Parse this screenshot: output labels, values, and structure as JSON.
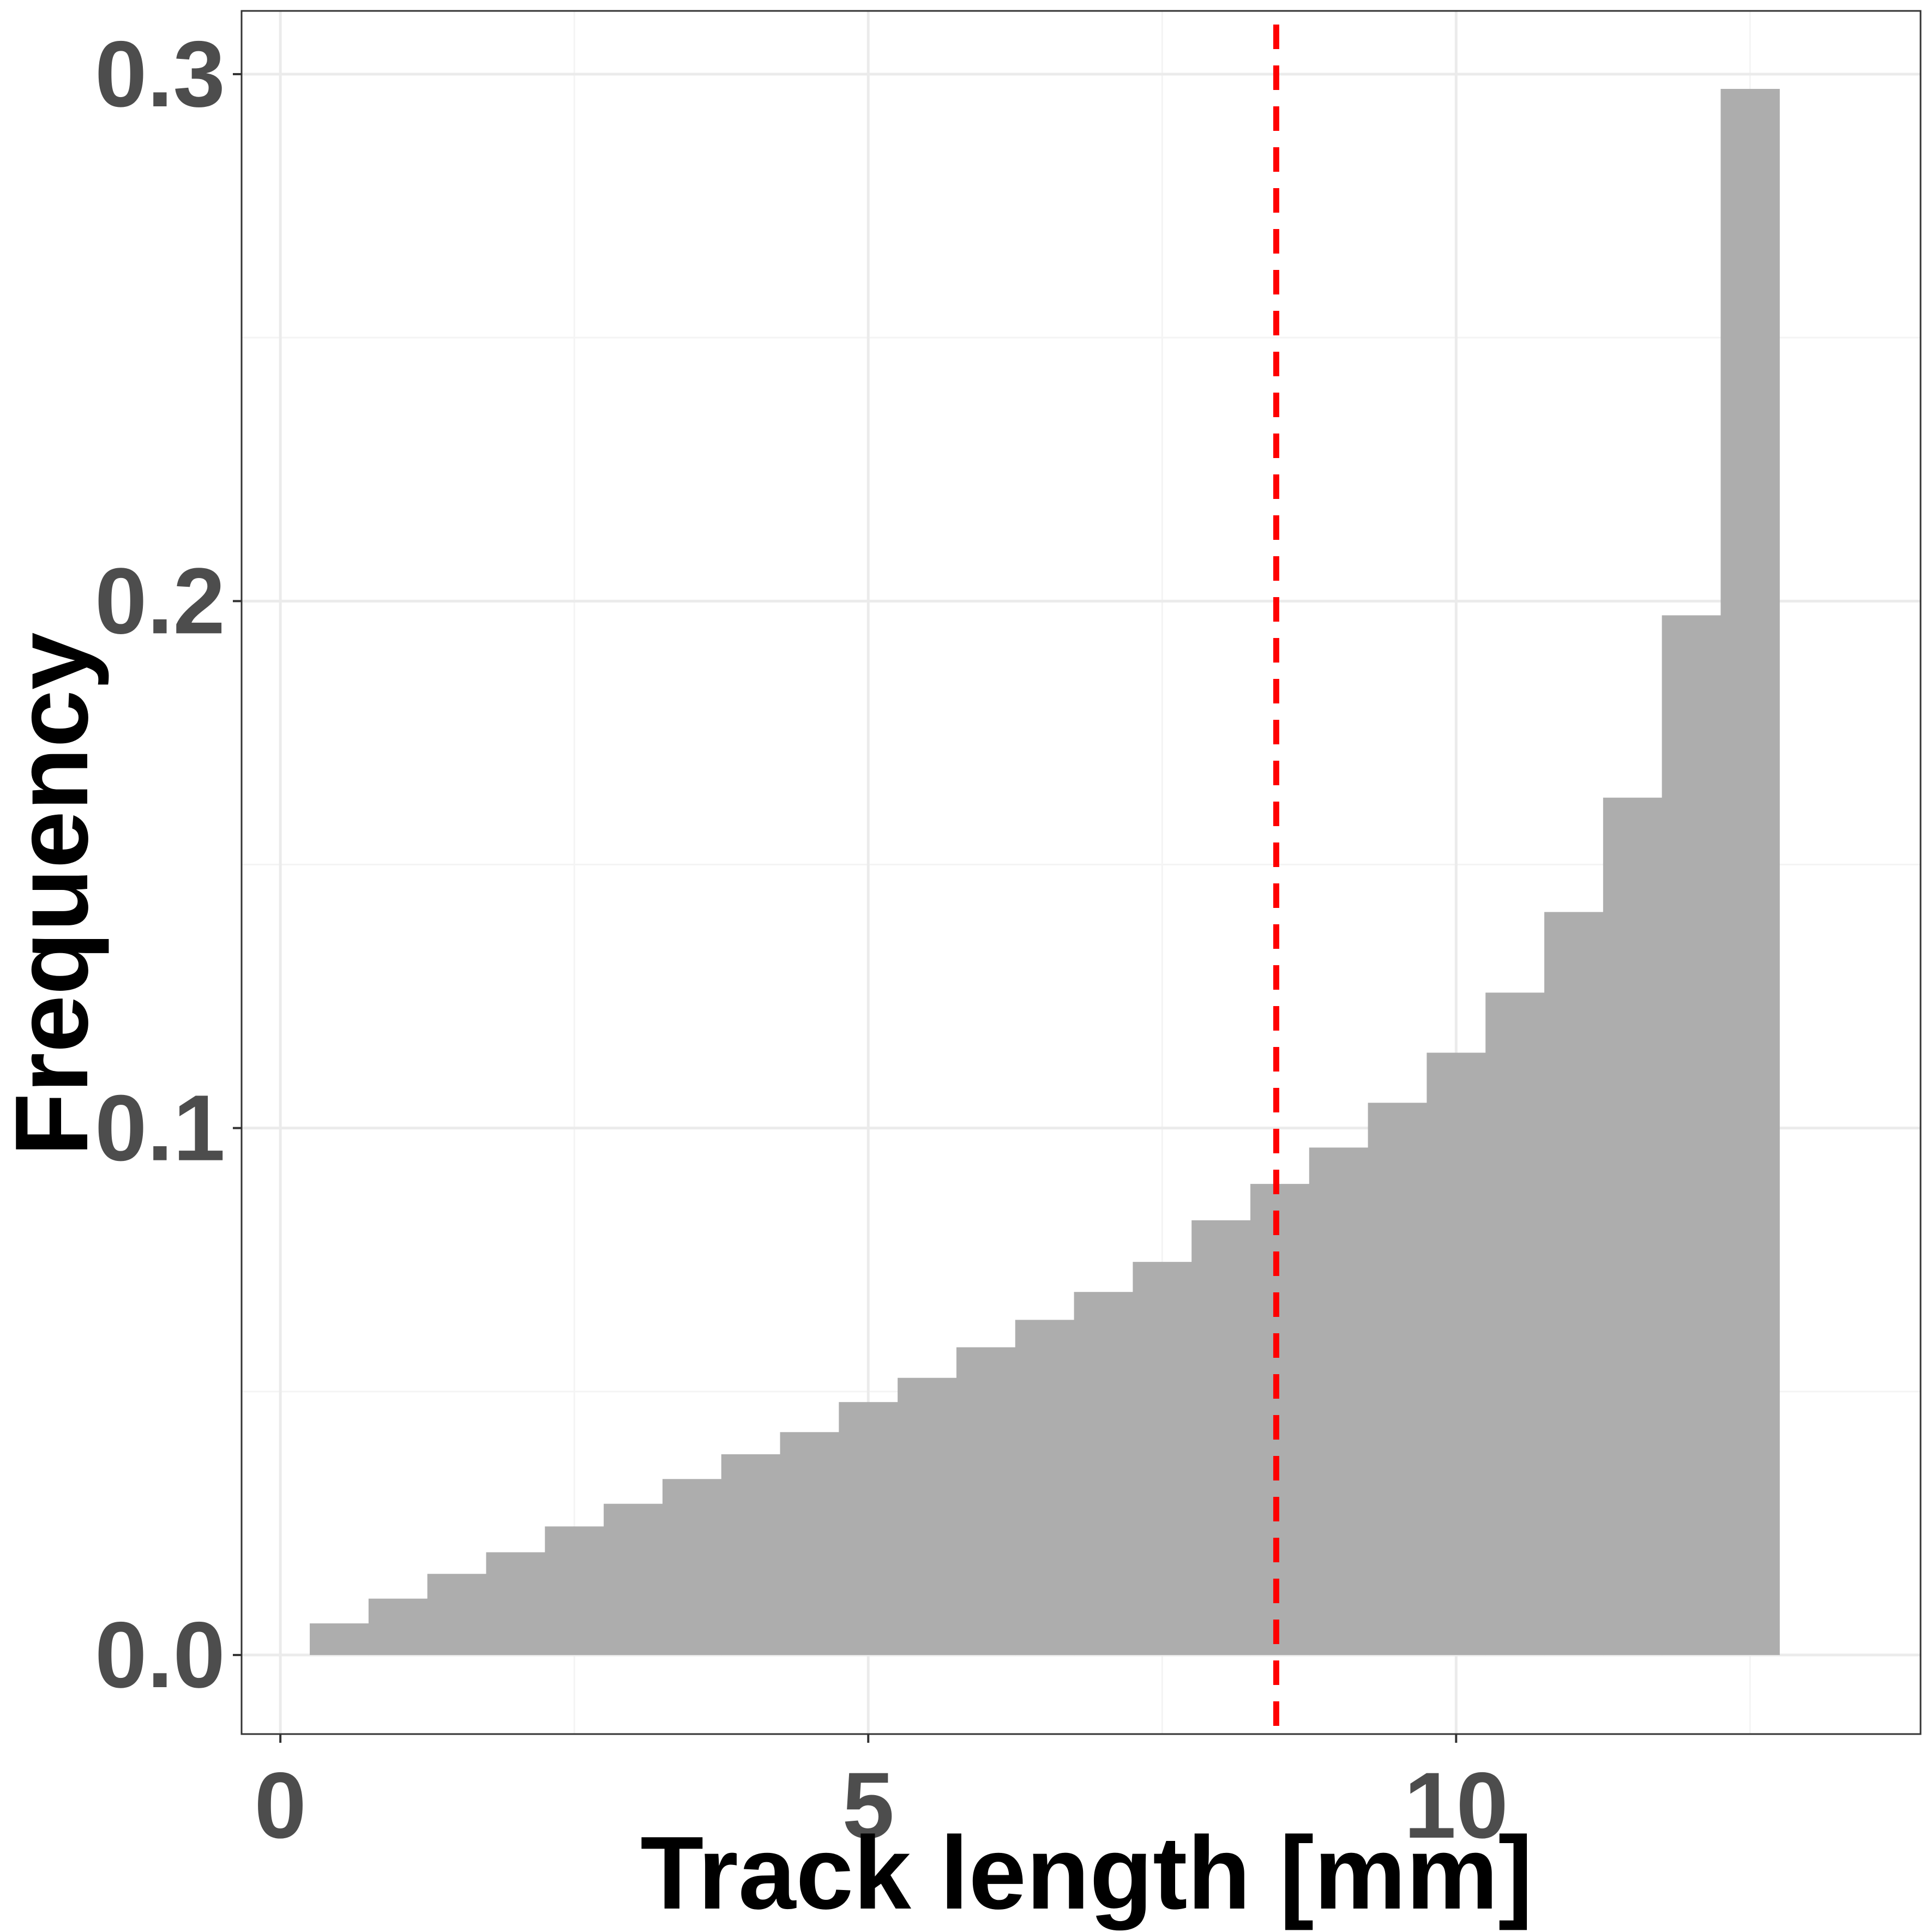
{
  "chart_data": {
    "type": "bar",
    "title": "",
    "xlabel": "Track length [mm]",
    "ylabel": "Frequency",
    "xlim": [
      -0.33,
      13.95
    ],
    "ylim": [
      -0.015,
      0.312
    ],
    "x_ticks": [
      {
        "value": 0,
        "label": "0"
      },
      {
        "value": 5,
        "label": "5"
      },
      {
        "value": 10,
        "label": "10"
      }
    ],
    "y_ticks": [
      {
        "value": 0.0,
        "label": "0.0"
      },
      {
        "value": 0.1,
        "label": "0.1"
      },
      {
        "value": 0.2,
        "label": "0.2"
      },
      {
        "value": 0.3,
        "label": "0.3"
      }
    ],
    "x_minor_grid": [
      2.5,
      7.5,
      12.5
    ],
    "y_minor_grid": [
      0.05,
      0.15,
      0.25
    ],
    "grid": true,
    "bin_width": 0.5,
    "bins": [
      {
        "x_start": 0.25,
        "value": 0.006
      },
      {
        "x_start": 0.75,
        "value": 0.0107
      },
      {
        "x_start": 1.25,
        "value": 0.0154
      },
      {
        "x_start": 1.75,
        "value": 0.0195
      },
      {
        "x_start": 2.25,
        "value": 0.0244
      },
      {
        "x_start": 2.75,
        "value": 0.0287
      },
      {
        "x_start": 3.25,
        "value": 0.0334
      },
      {
        "x_start": 3.75,
        "value": 0.0381
      },
      {
        "x_start": 4.25,
        "value": 0.0423
      },
      {
        "x_start": 4.75,
        "value": 0.048
      },
      {
        "x_start": 5.25,
        "value": 0.0526
      },
      {
        "x_start": 5.75,
        "value": 0.0584
      },
      {
        "x_start": 6.25,
        "value": 0.0636
      },
      {
        "x_start": 6.75,
        "value": 0.0689
      },
      {
        "x_start": 7.25,
        "value": 0.0746
      },
      {
        "x_start": 7.75,
        "value": 0.0825
      },
      {
        "x_start": 8.25,
        "value": 0.0894
      },
      {
        "x_start": 8.75,
        "value": 0.0963
      },
      {
        "x_start": 9.25,
        "value": 0.1048
      },
      {
        "x_start": 9.75,
        "value": 0.1143
      },
      {
        "x_start": 10.25,
        "value": 0.1257
      },
      {
        "x_start": 10.75,
        "value": 0.141
      },
      {
        "x_start": 11.25,
        "value": 0.1627
      },
      {
        "x_start": 11.75,
        "value": 0.1973
      },
      {
        "x_start": 12.25,
        "value": 0.2972
      }
    ],
    "reference_line": {
      "x": 8.47,
      "style": "dashed",
      "color": "#ff0000"
    },
    "colors": {
      "bar": "#adadad",
      "grid_major": "#ebebeb",
      "grid_minor": "#f4f4f4",
      "panel_border": "#333333",
      "tick_label": "#4d4d4d",
      "axis_title": "#000000"
    }
  }
}
